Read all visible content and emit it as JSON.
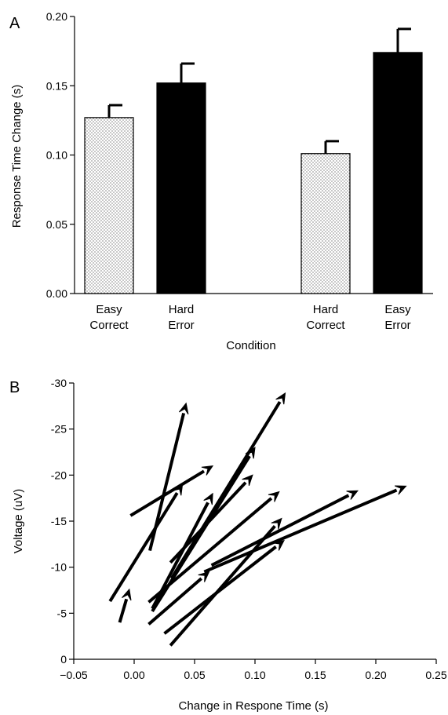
{
  "chart_data": [
    {
      "panel": "A",
      "type": "bar",
      "xlabel": "Condition",
      "ylabel": "Response Time Change (s)",
      "ylim": [
        0.0,
        0.2
      ],
      "yticks": [
        "0.00",
        "0.05",
        "0.10",
        "0.15",
        "0.20"
      ],
      "bars": [
        {
          "label": [
            "Easy",
            "Correct"
          ],
          "value": 0.127,
          "error": 0.009,
          "fill": "dotted"
        },
        {
          "label": [
            "Hard",
            "Error"
          ],
          "value": 0.152,
          "error": 0.014,
          "fill": "#000000"
        },
        {
          "label": [
            "Hard",
            "Correct"
          ],
          "value": 0.101,
          "error": 0.009,
          "fill": "dotted"
        },
        {
          "label": [
            "Easy",
            "Error"
          ],
          "value": 0.174,
          "error": 0.017,
          "fill": "#000000"
        }
      ]
    },
    {
      "panel": "B",
      "type": "line",
      "xlabel": "Change in Respone Time (s)",
      "ylabel": "Voltage (uV)",
      "xlim": [
        -0.05,
        0.25
      ],
      "ylim": [
        0,
        -30
      ],
      "xticks": [
        "−0.05",
        "0.00",
        "0.05",
        "0.10",
        "0.15",
        "0.20",
        "0.25"
      ],
      "yticks": [
        "0",
        "-5",
        "-10",
        "-15",
        "-20",
        "-25",
        "-30"
      ],
      "arrows": [
        {
          "x": [
            0.013,
            0.043
          ],
          "y": [
            -11.8,
            -27.8
          ]
        },
        {
          "x": [
            -0.02,
            0.04
          ],
          "y": [
            -6.3,
            -19.0
          ]
        },
        {
          "x": [
            -0.003,
            0.065
          ],
          "y": [
            -15.6,
            -21.0
          ]
        },
        {
          "x": [
            -0.012,
            -0.004
          ],
          "y": [
            -4.0,
            -7.6
          ]
        },
        {
          "x": [
            0.015,
            0.065
          ],
          "y": [
            -5.5,
            -18.0
          ]
        },
        {
          "x": [
            0.031,
            0.125
          ],
          "y": [
            -8.8,
            -28.9
          ]
        },
        {
          "x": [
            0.015,
            0.1
          ],
          "y": [
            -5.2,
            -23.0
          ]
        },
        {
          "x": [
            0.03,
            0.098
          ],
          "y": [
            -10.5,
            -20.0
          ]
        },
        {
          "x": [
            0.012,
            0.12
          ],
          "y": [
            -6.2,
            -18.2
          ]
        },
        {
          "x": [
            0.064,
            0.185
          ],
          "y": [
            -10.2,
            -18.3
          ]
        },
        {
          "x": [
            0.012,
            0.062
          ],
          "y": [
            -3.8,
            -9.5
          ]
        },
        {
          "x": [
            0.03,
            0.122
          ],
          "y": [
            -1.5,
            -15.3
          ]
        },
        {
          "x": [
            0.025,
            0.124
          ],
          "y": [
            -2.8,
            -12.9
          ]
        },
        {
          "x": [
            0.058,
            0.225
          ],
          "y": [
            -9.5,
            -18.8
          ]
        }
      ]
    }
  ]
}
